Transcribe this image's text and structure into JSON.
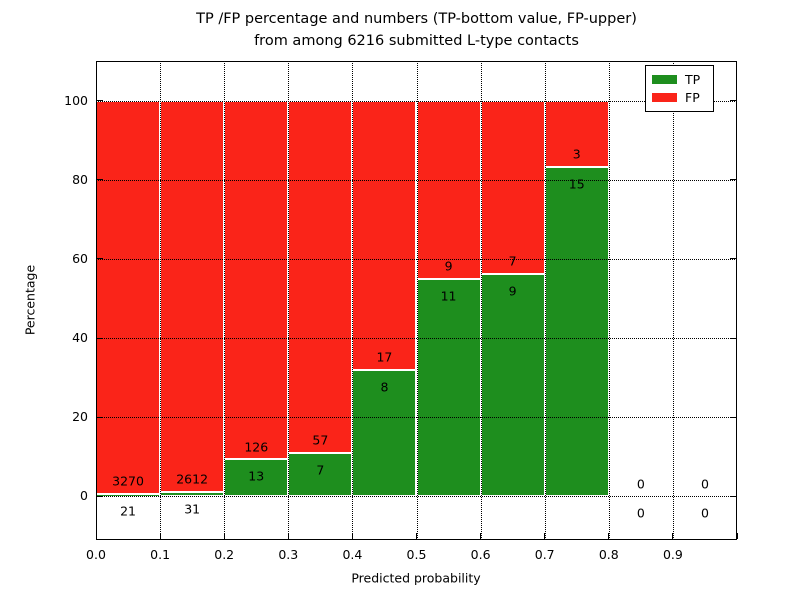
{
  "title": {
    "line1": "TP /FP percentage and numbers (TP-bottom value, FP-upper)",
    "line2": "from among 6216 submitted L-type contacts"
  },
  "axes": {
    "xlabel": "Predicted probability",
    "ylabel": "Percentage",
    "xtick_labels": [
      "0.0",
      "0.1",
      "0.2",
      "0.3",
      "0.4",
      "0.5",
      "0.6",
      "0.7",
      "0.8",
      "0.9"
    ],
    "xtick_values": [
      0.0,
      0.1,
      0.2,
      0.3,
      0.4,
      0.5,
      0.6,
      0.7,
      0.8,
      0.9
    ],
    "ytick_labels": [
      "0",
      "20",
      "40",
      "60",
      "80",
      "100"
    ],
    "ytick_values": [
      0,
      20,
      40,
      60,
      80,
      100
    ],
    "xlim": [
      0.0,
      1.0
    ],
    "ylim": [
      -11,
      110
    ]
  },
  "legend": {
    "position": "upper right",
    "entries": [
      {
        "label": "TP",
        "color": "#1e8e1e"
      },
      {
        "label": "FP",
        "color": "#fa2419"
      }
    ]
  },
  "colors": {
    "tp_green": "#1e8e1e",
    "fp_red": "#fa2419",
    "grid": "#000000",
    "background": "#ffffff",
    "bar_edge": "#ffffff"
  },
  "chart_data": {
    "type": "bar",
    "stacked": true,
    "title": "TP /FP percentage and numbers (TP-bottom value, FP-upper) from among 6216 submitted L-type contacts",
    "xlabel": "Predicted probability",
    "ylabel": "Percentage",
    "total_submitted_contacts": 6216,
    "bin_width": 0.1,
    "bin_starts": [
      0.0,
      0.1,
      0.2,
      0.3,
      0.4,
      0.5,
      0.6,
      0.7,
      0.8,
      0.9
    ],
    "categories": [
      "0.0-0.1",
      "0.1-0.2",
      "0.2-0.3",
      "0.3-0.4",
      "0.4-0.5",
      "0.5-0.6",
      "0.6-0.7",
      "0.7-0.8",
      "0.8-0.9",
      "0.9-1.0"
    ],
    "series": [
      {
        "name": "TP",
        "counts": [
          21,
          31,
          13,
          7,
          8,
          11,
          9,
          15,
          0,
          0
        ],
        "percentages": [
          0.64,
          1.17,
          9.35,
          10.94,
          32.0,
          55.0,
          56.25,
          83.33,
          0,
          0
        ]
      },
      {
        "name": "FP",
        "counts": [
          3270,
          2612,
          126,
          57,
          17,
          9,
          7,
          3,
          0,
          0
        ],
        "percentages": [
          99.36,
          98.83,
          90.65,
          89.06,
          68.0,
          45.0,
          43.75,
          16.67,
          0,
          0
        ]
      }
    ],
    "annotation_rule": "FP count printed just above the TP/FP boundary, TP count just below it; empty bins show 0 above and below the zero line",
    "grid": "dotted, drawn above bars",
    "legend_position": "upper right",
    "ylim_data": [
      0,
      100
    ]
  }
}
